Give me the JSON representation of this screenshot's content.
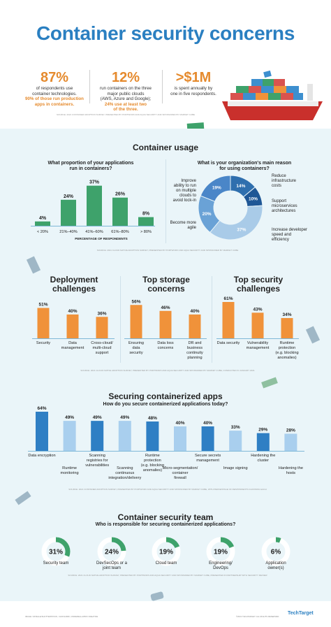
{
  "title": "Container security concerns",
  "stats": [
    {
      "value": "87%",
      "lines": [
        "of respondents use",
        "container technologies."
      ],
      "highlight": [
        "90% of those run production",
        "apps in containers."
      ]
    },
    {
      "value": "12%",
      "lines": [
        "run containers on the three",
        "major public clouds",
        "(AWS, Azure and Google);"
      ],
      "highlight": [
        "24% use at least two",
        "of the three."
      ]
    },
    {
      "value": ">$1M",
      "lines": [
        "is spent annually by",
        "one in five respondents."
      ],
      "highlight": []
    }
  ],
  "source_top": "SOURCE: 2021 CONTAINER ADOPTION SURVEY, PRESENTED BY PORTWORX AND AQUA SECURITY AND SPONSORED BY MARKET CUBE",
  "usage": {
    "heading": "Container usage",
    "left_question": [
      "What proportion of your applications",
      "run in containers?"
    ],
    "right_question": [
      "What is your organization's main reason",
      "for using containers?"
    ],
    "xlabel": "PERCENTAGE OF RESPONDENTS",
    "source": "SOURCE: 2021 CLOUD NATIVE ADOPTION SURVEY, PRESENTED BY PORTWORX AND AQUA SECURITY AND SPONSORED BY MARKET CUBE"
  },
  "deploy_heading": [
    "Deployment",
    "challenges"
  ],
  "storage_heading": [
    "Top storage",
    "concerns"
  ],
  "security_heading": [
    "Top security",
    "challenges"
  ],
  "challenges_source": "SOURCE: 2021 CLOUD NATIVE ADOPTION SURVEY, PRESENTED BY PORTWORX AND AQUA SECURITY AND SPONSORED BY MARKET CUBE, CONDUCTED IN JANUARY 2021",
  "securing": {
    "heading": "Securing containerized apps",
    "question": "How do you secure containerized applications today?",
    "source": "SOURCE: 2021 CONTAINER ADOPTION SURVEY, PRESENTED BY PORTWORX AND AQUA SECURITY AND SPONSORED BY MARKET CUBE, WITH PERCENTAGE OF RESPONDENTS CHOOSING EACH"
  },
  "team": {
    "heading": "Container security team",
    "question": "Who is responsible for securing containerized applications?",
    "source": "SOURCE: 2021 CLOUD NATIVE ADOPTION SURVEY, PRESENTED BY PORTWORX AND AQUA SECURITY AND SPONSORED BY MARKET CUBE, PRESENTED IN PARTNERSHIP WITH SECURITY REVIEW"
  },
  "footer_left": "IMAGE: NATELLE/SHUTTERSTOCK, CHOI/123RF, CINDERELLA/PRO CREATIVE",
  "footer_right": "©2021 TECHTARGET. ALL RIGHTS RESERVED.",
  "brand": "TechTarget",
  "colors": {
    "blue": "#2a7fc1",
    "orange": "#f0923a",
    "green": "#3ea26b",
    "darkblue": "#4a86c8",
    "lightblue": "#a9cbe8",
    "panel": "#eaf5f9"
  },
  "chart_data": [
    {
      "type": "bar",
      "title": "What proportion of your applications run in containers?",
      "categories": [
        "< 20%",
        "21%–40%",
        "41%–60%",
        "61%–80%",
        "> 80%"
      ],
      "values": [
        4,
        24,
        37,
        26,
        8
      ],
      "labels": [
        "4%",
        "24%",
        "37%",
        "26%",
        "8%"
      ],
      "xlabel": "PERCENTAGE OF RESPONDENTS",
      "color": "#3ea26b",
      "ylim": [
        0,
        40
      ]
    },
    {
      "type": "pie",
      "title": "What is your organization's main reason for using containers?",
      "categories": [
        "Reduce infrastructure costs",
        "Support microservices architectures",
        "Increase developer speed and efficiency",
        "Become more agile",
        "Improve ability to run on multiple clouds to avoid lock-in"
      ],
      "values": [
        14,
        10,
        37,
        20,
        19
      ],
      "labels": [
        "14%",
        "10%",
        "37%",
        "20%",
        "19%"
      ],
      "colors": [
        "#2f6fae",
        "#1f5796",
        "#a9cbe8",
        "#6aa2d6",
        "#4a86c8"
      ]
    },
    {
      "type": "bar",
      "title": "Deployment challenges",
      "categories": [
        "Security",
        "Data management",
        "Cross-cloud/ multi-cloud support"
      ],
      "values": [
        51,
        40,
        36
      ],
      "labels": [
        "51%",
        "40%",
        "36%"
      ],
      "color": "#f0923a",
      "ylim": [
        0,
        61
      ]
    },
    {
      "type": "bar",
      "title": "Top storage concerns",
      "categories": [
        "Ensuring data security",
        "Data loss concerns",
        "DR and business continuity planning"
      ],
      "values": [
        56,
        46,
        40
      ],
      "labels": [
        "56%",
        "46%",
        "40%"
      ],
      "color": "#f0923a",
      "ylim": [
        0,
        61
      ]
    },
    {
      "type": "bar",
      "title": "Top security challenges",
      "categories": [
        "Data security",
        "Vulnerability management",
        "Runtime protection (e.g. blocking anomalies)"
      ],
      "values": [
        61,
        43,
        34
      ],
      "labels": [
        "61%",
        "43%",
        "34%"
      ],
      "color": "#f0923a",
      "ylim": [
        0,
        61
      ]
    },
    {
      "type": "bar",
      "title": "How do you secure containerized applications today?",
      "categories": [
        "Data encryption",
        "Runtime monitoring",
        "Scanning registries for vulnerabilities",
        "Scanning continuous integration/delivery",
        "Runtime protection (e.g. blocking anomalies)",
        "Micro-segmentation/ container firewall",
        "Secure secrets management",
        "Image signing",
        "Hardening the cluster",
        "Hardening the hosts"
      ],
      "values": [
        64,
        49,
        49,
        49,
        48,
        40,
        40,
        33,
        29,
        28
      ],
      "labels": [
        "64%",
        "49%",
        "49%",
        "49%",
        "48%",
        "40%",
        "40%",
        "33%",
        "29%",
        "28%"
      ],
      "colors": [
        "#2f7fc4",
        "#a9cfee",
        "#2f7fc4",
        "#a9cfee",
        "#2f7fc4",
        "#a9cfee",
        "#2f7fc4",
        "#a9cfee",
        "#2f7fc4",
        "#a9cfee"
      ],
      "ylim": [
        0,
        64
      ]
    },
    {
      "type": "pie",
      "title": "Who is responsible for securing containerized applications?",
      "categories": [
        "Security team",
        "DevSecOps or a joint team",
        "Cloud team",
        "Engineering/ DevOps",
        "Application owner(s)"
      ],
      "values": [
        31,
        24,
        19,
        19,
        6
      ],
      "labels": [
        "31%",
        "24%",
        "19%",
        "19%",
        "6%"
      ],
      "color": "#3ea26b"
    }
  ]
}
